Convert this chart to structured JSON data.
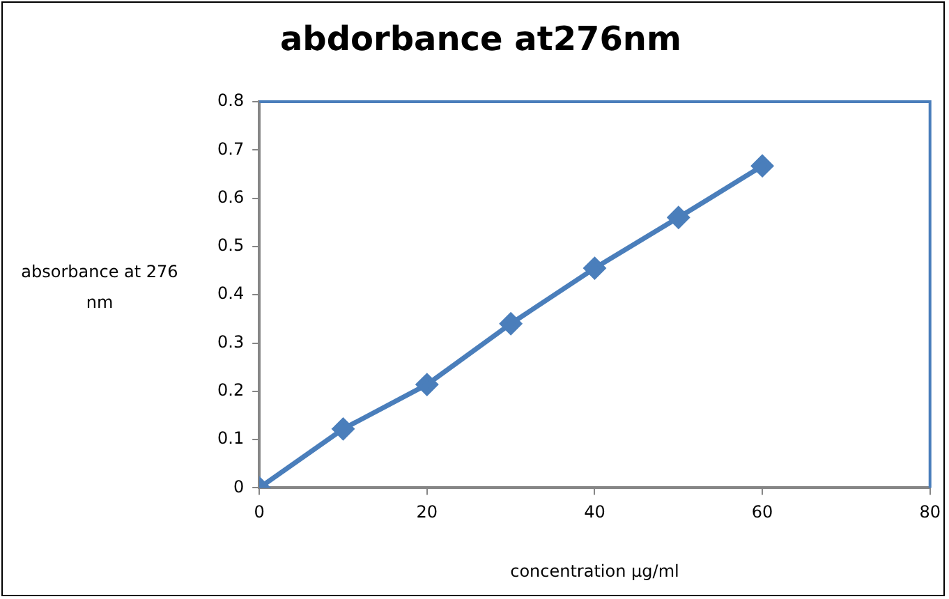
{
  "chart_data": {
    "type": "line",
    "title": "abdorbance at276nm",
    "xlabel": "concentration µg/ml",
    "ylabel": "absorbance at 276 nm",
    "x": [
      0,
      10,
      20,
      30,
      40,
      50,
      60
    ],
    "series": [
      {
        "color": "#4a7ebb",
        "values": [
          0,
          0.122,
          0.214,
          0.34,
          0.455,
          0.56,
          0.667
        ]
      }
    ],
    "xlim": [
      0,
      80
    ],
    "xticks": [
      0,
      20,
      40,
      60,
      80
    ],
    "ylim": [
      0,
      0.8
    ],
    "yticks": [
      0,
      0.1,
      0.2,
      0.3,
      0.4,
      0.5,
      0.6,
      0.7,
      0.8
    ],
    "grid": false,
    "legend": false,
    "marker": "diamond",
    "line_style": "solid"
  }
}
